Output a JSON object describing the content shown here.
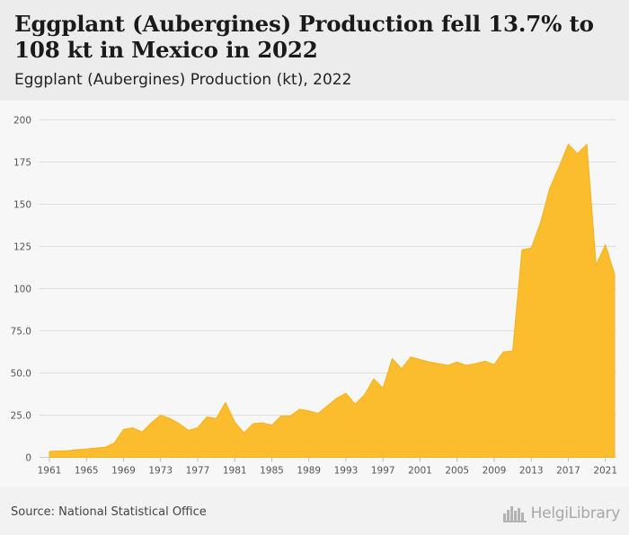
{
  "headline": "Eggplant (Aubergines) Production fell 13.7% to 108 kt in Mexico in 2022",
  "subtitle": "Eggplant (Aubergines) Production (kt), 2022",
  "source": "Source: National Statistical Office",
  "logo": {
    "text": "HelgiLibrary",
    "icon": "city-skyline-icon"
  },
  "colors": {
    "area": "#fbbd2e",
    "area_stroke": "#f5b21c",
    "grid": "#dedede",
    "background": "#f7f7f7"
  },
  "chart_data": {
    "type": "area",
    "title": "Eggplant (Aubergines) Production (kt), 2022",
    "xlabel": "",
    "ylabel": "",
    "ylim": [
      0,
      200
    ],
    "grid": true,
    "yticks": [
      "0",
      "25.0",
      "50.0",
      "75.0",
      "100",
      "125",
      "150",
      "175",
      "200"
    ],
    "xticks": [
      "1961",
      "1965",
      "1969",
      "1973",
      "1977",
      "1981",
      "1985",
      "1989",
      "1993",
      "1997",
      "2001",
      "2005",
      "2009",
      "2013",
      "2017",
      "2021"
    ],
    "series": [
      {
        "x": [
          1961,
          1962,
          1963,
          1964,
          1965,
          1966,
          1967,
          1968,
          1969,
          1970,
          1971,
          1972,
          1973,
          1974,
          1975,
          1976,
          1977,
          1978,
          1979,
          1980,
          1981,
          1982,
          1983,
          1984,
          1985,
          1986,
          1987,
          1988,
          1989,
          1990,
          1991,
          1992,
          1993,
          1994,
          1995,
          1996,
          1997,
          1998,
          1999,
          2000,
          2001,
          2002,
          2003,
          2004,
          2005,
          2006,
          2007,
          2008,
          2009,
          2010,
          2011,
          2012,
          2013,
          2014,
          2015,
          2016,
          2017,
          2018,
          2019,
          2020,
          2021,
          2022
        ],
        "values": [
          3.5,
          3.8,
          4.0,
          4.5,
          5.0,
          5.5,
          6.0,
          8.5,
          16.5,
          17.5,
          15.0,
          20.5,
          25.0,
          23.0,
          20.0,
          16.0,
          17.5,
          24.0,
          23.0,
          32.5,
          21.0,
          14.5,
          20.0,
          20.5,
          19.0,
          24.5,
          24.5,
          28.5,
          27.5,
          26.0,
          30.5,
          35.0,
          38.0,
          31.5,
          37.0,
          46.5,
          41.0,
          58.5,
          52.5,
          59.5,
          58.0,
          56.5,
          55.5,
          54.5,
          56.5,
          54.5,
          55.5,
          57.0,
          55.0,
          62.5,
          63.0,
          123.0,
          124.0,
          139.0,
          159.5,
          172.0,
          185.5,
          180.0,
          185.5,
          114.0,
          126.0,
          108.5
        ]
      }
    ]
  }
}
